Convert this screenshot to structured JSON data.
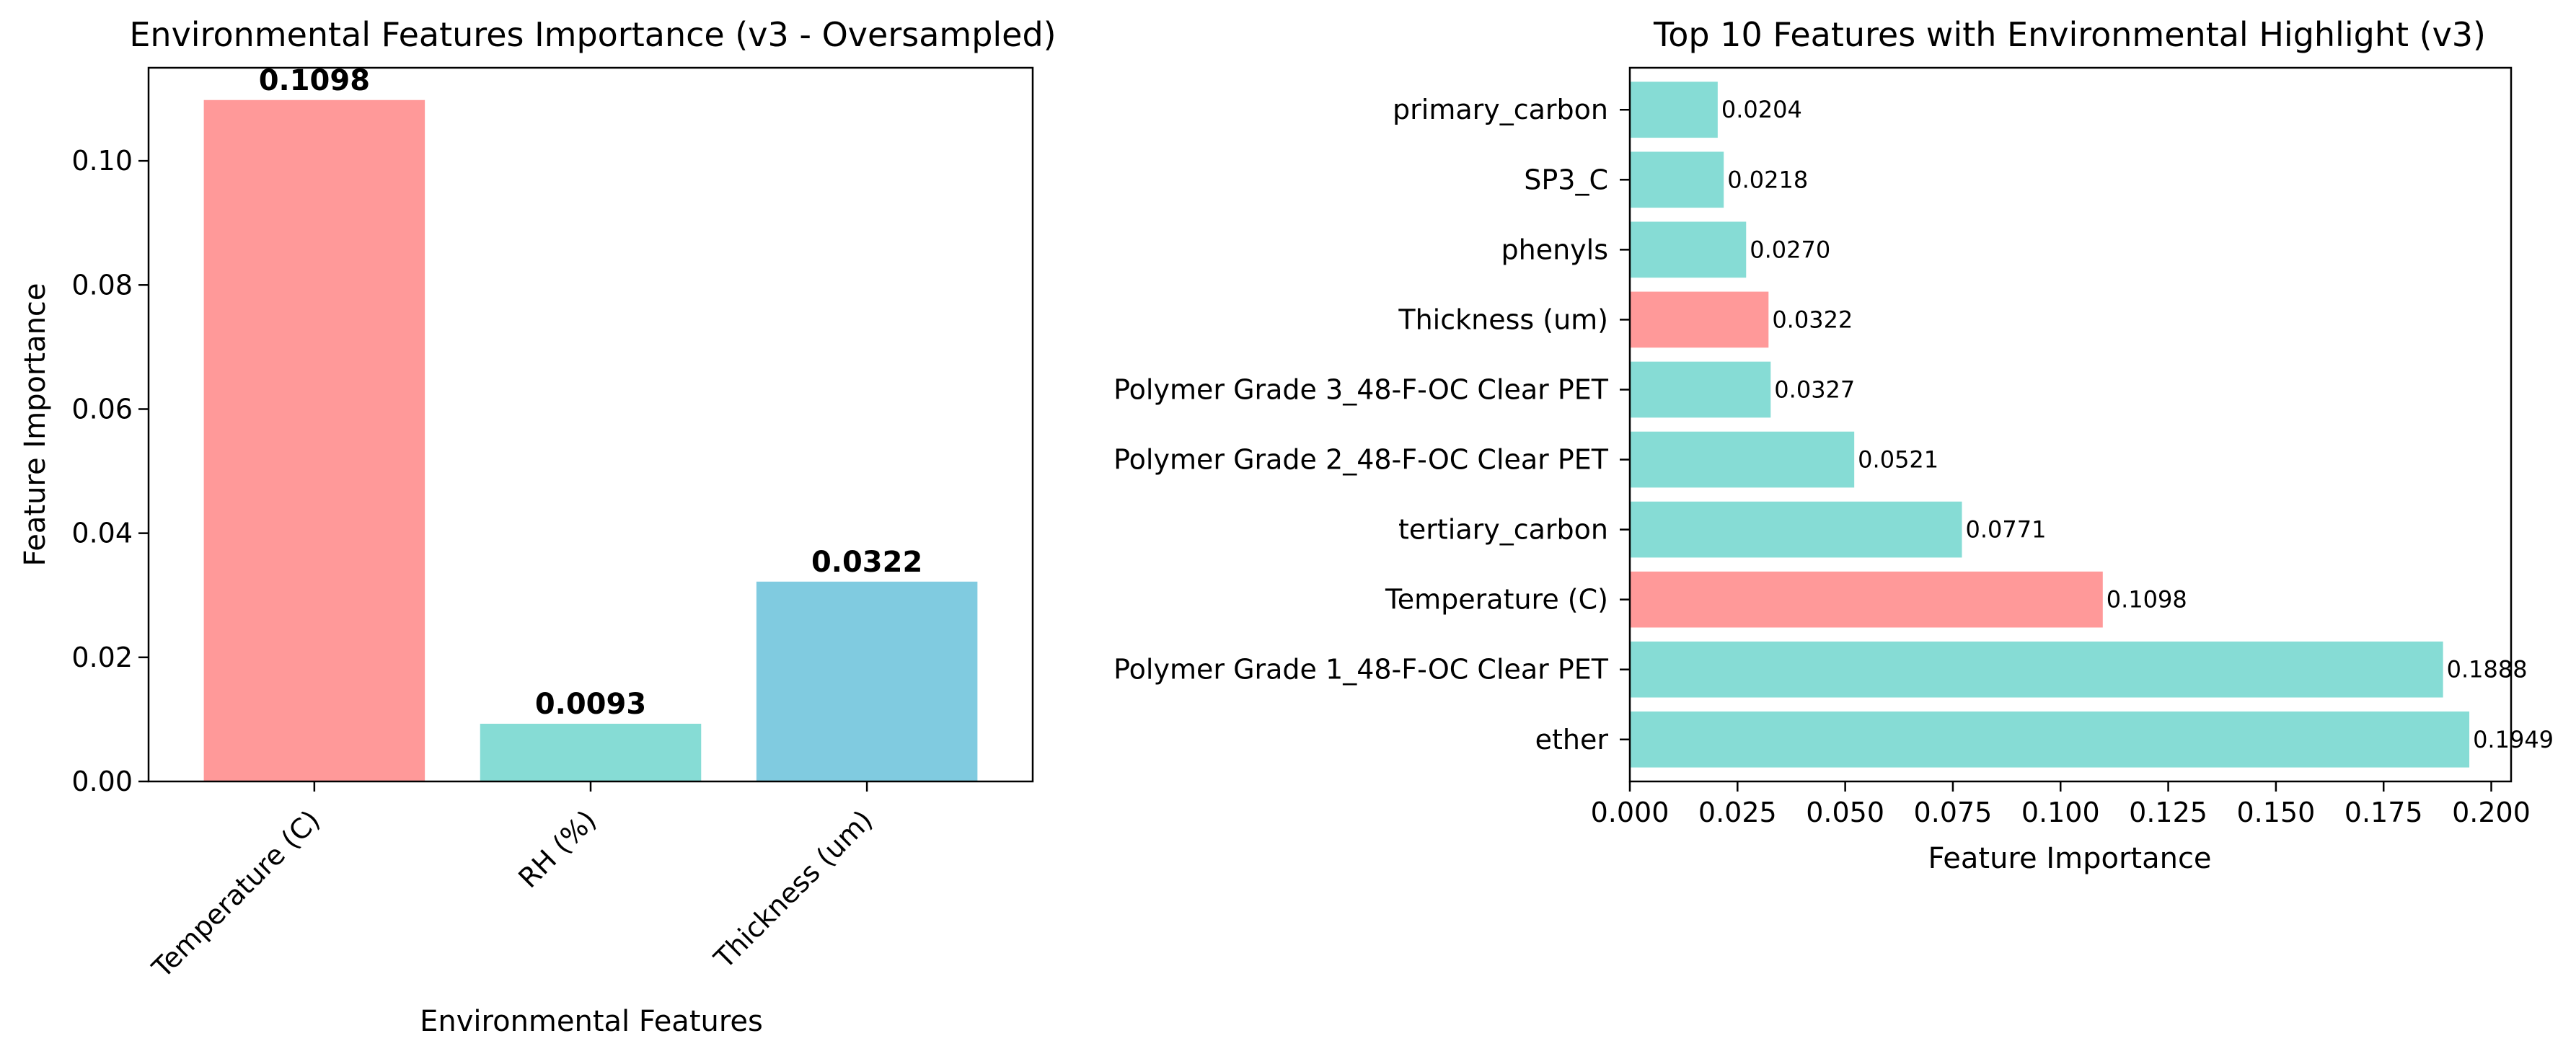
{
  "chart_data": [
    {
      "type": "bar",
      "title": "Environmental Features Importance (v3 - Oversampled)",
      "xlabel": "Environmental Features",
      "ylabel": "Feature Importance",
      "categories": [
        "Temperature (C)",
        "RH (%)",
        "Thickness (um)"
      ],
      "values": [
        0.1098,
        0.0093,
        0.0322
      ],
      "value_labels": [
        "0.1098",
        "0.0093",
        "0.0322"
      ],
      "colors": [
        "#ff9999",
        "#86dcd5",
        "#80cbe0"
      ],
      "ylim": [
        0,
        0.115
      ],
      "y_ticks": [
        0.0,
        0.02,
        0.04,
        0.06,
        0.08,
        0.1
      ],
      "y_tick_labels": [
        "0.00",
        "0.02",
        "0.04",
        "0.06",
        "0.08",
        "0.10"
      ],
      "x_tick_rotation_deg": 45,
      "grid": false
    },
    {
      "type": "bar",
      "orientation": "horizontal",
      "title": "Top 10 Features with Environmental Highlight (v3)",
      "xlabel": "Feature Importance",
      "ylabel": "",
      "categories": [
        "primary_carbon",
        "SP3_C",
        "phenyls",
        "Thickness (um)",
        "Polymer Grade 3_48-F-OC Clear PET",
        "Polymer Grade 2_48-F-OC Clear PET",
        "tertiary_carbon",
        "Temperature (C)",
        "Polymer Grade 1_48-F-OC Clear PET",
        "ether"
      ],
      "values": [
        0.0204,
        0.0218,
        0.027,
        0.0322,
        0.0327,
        0.0521,
        0.0771,
        0.1098,
        0.1888,
        0.1949
      ],
      "value_labels": [
        "0.0204",
        "0.0218",
        "0.0270",
        "0.0322",
        "0.0327",
        "0.0521",
        "0.0771",
        "0.1098",
        "0.1888",
        "0.1949"
      ],
      "colors": [
        "#86dcd5",
        "#86dcd5",
        "#86dcd5",
        "#ff9999",
        "#86dcd5",
        "#86dcd5",
        "#86dcd5",
        "#ff9999",
        "#86dcd5",
        "#86dcd5"
      ],
      "xlim": [
        0,
        0.2046
      ],
      "x_ticks": [
        0.0,
        0.025,
        0.05,
        0.075,
        0.1,
        0.125,
        0.15,
        0.175,
        0.2
      ],
      "x_tick_labels": [
        "0.000",
        "0.025",
        "0.050",
        "0.075",
        "0.100",
        "0.125",
        "0.150",
        "0.175",
        "0.200"
      ],
      "grid": false
    }
  ]
}
